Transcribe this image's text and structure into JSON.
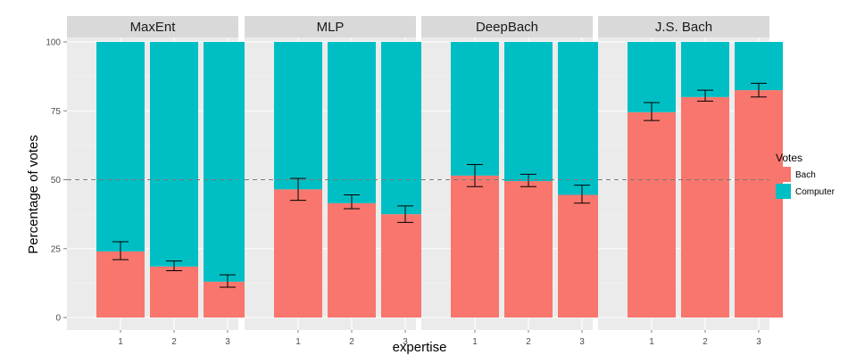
{
  "chart_data": {
    "type": "bar",
    "stacked": true,
    "facet_by": "model",
    "panels": [
      {
        "name": "MaxEnt",
        "categories": [
          "1",
          "2",
          "3"
        ],
        "bach": [
          24,
          18.5,
          13
        ],
        "computer": [
          76,
          81.5,
          87
        ],
        "error_low": [
          21,
          17,
          11
        ],
        "error_high": [
          27.5,
          20.5,
          15.5
        ]
      },
      {
        "name": "MLP",
        "categories": [
          "1",
          "2",
          "3"
        ],
        "bach": [
          46.5,
          41.5,
          37.5
        ],
        "computer": [
          53.5,
          58.5,
          62.5
        ],
        "error_low": [
          42.5,
          39.5,
          34.5
        ],
        "error_high": [
          50.5,
          44.5,
          40.5
        ]
      },
      {
        "name": "DeepBach",
        "categories": [
          "1",
          "2",
          "3"
        ],
        "bach": [
          51.5,
          49.5,
          44.5
        ],
        "computer": [
          48.5,
          50.5,
          55.5
        ],
        "error_low": [
          47.5,
          47.5,
          41.5
        ],
        "error_high": [
          55.5,
          52,
          48
        ]
      },
      {
        "name": "J.S. Bach",
        "categories": [
          "1",
          "2",
          "3"
        ],
        "bach": [
          74.5,
          80,
          82.5
        ],
        "computer": [
          25.5,
          20,
          17.5
        ],
        "error_low": [
          71.5,
          78.5,
          80
        ],
        "error_high": [
          78,
          82.5,
          85
        ]
      }
    ],
    "xlabel": "expertise",
    "ylabel": "Percentage of votes",
    "ylim": [
      0,
      100
    ],
    "yticks": [
      "0",
      "25",
      "50",
      "75",
      "100"
    ],
    "reference_line": 50,
    "legend": {
      "title": "Votes",
      "position": "right",
      "entries": [
        {
          "label": "Bach",
          "color": "#F8766D"
        },
        {
          "label": "Computer",
          "color": "#00BFC4"
        }
      ]
    },
    "colors": {
      "bach": "#F8766D",
      "computer": "#00BFC4",
      "panel_bg": "#EBEBEB",
      "strip_bg": "#D9D9D9",
      "grid": "#FFFFFF"
    },
    "grid": true
  }
}
